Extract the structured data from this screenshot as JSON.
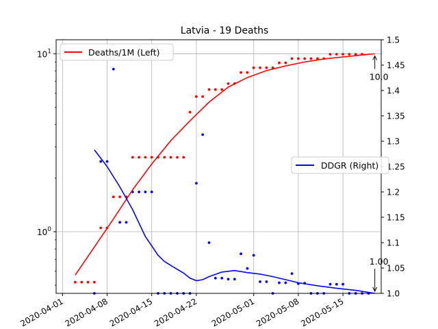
{
  "chart_data": {
    "type": "line",
    "title": "Latvia - 19 Deaths",
    "xlabel": "",
    "ylabel_left": "",
    "ylabel_right": "",
    "x_tick_labels": [
      "2020-04-01",
      "2020-04-08",
      "2020-04-15",
      "2020-04-22",
      "2020-05-01",
      "2020-05-08",
      "2020-05-15"
    ],
    "x_tick_dates": [
      "2020-04-01",
      "2020-04-08",
      "2020-04-15",
      "2020-04-22",
      "2020-05-01",
      "2020-05-08",
      "2020-05-15"
    ],
    "x_range": [
      "2020-03-31",
      "2020-05-21"
    ],
    "left_axis": {
      "scale": "log",
      "range": [
        0.45,
        12
      ],
      "major_ticks": [
        1,
        10
      ],
      "major_tick_labels": [
        "10^0",
        "10^1"
      ]
    },
    "right_axis": {
      "scale": "linear",
      "range": [
        1.0,
        1.5
      ],
      "ticks": [
        1.0,
        1.05,
        1.1,
        1.15,
        1.2,
        1.25,
        1.3,
        1.35,
        1.4,
        1.45,
        1.5
      ],
      "tick_labels": [
        "1.0",
        "1.05",
        "1.1",
        "1.15",
        "1.2",
        "1.25",
        "1.3",
        "1.35",
        "1.4",
        "1.45",
        "1.5"
      ]
    },
    "grid": true,
    "colors": {
      "deaths": "#ff0000",
      "ddgr": "#0000ff"
    },
    "legends": [
      {
        "label": "Deaths/1M (Left)",
        "placement": "upper-left"
      },
      {
        "label": "DDGR (Right)",
        "placement": "center-right"
      }
    ],
    "annotations": [
      {
        "text": "10.0",
        "date": "2020-05-20",
        "value": 10.0,
        "axis": "left"
      },
      {
        "text": "1.00",
        "date": "2020-05-20",
        "value": 1.0,
        "axis": "right"
      }
    ],
    "series": [
      {
        "name": "Deaths/1M (Left)",
        "axis": "left",
        "kind": "line",
        "x": [
          "2020-04-03",
          "2020-04-06",
          "2020-04-09",
          "2020-04-12",
          "2020-04-15",
          "2020-04-18",
          "2020-04-21",
          "2020-04-24",
          "2020-04-27",
          "2020-04-30",
          "2020-05-03",
          "2020-05-06",
          "2020-05-09",
          "2020-05-12",
          "2020-05-15",
          "2020-05-18",
          "2020-05-20"
        ],
        "y": [
          0.57,
          0.82,
          1.18,
          1.72,
          2.4,
          3.25,
          4.2,
          5.35,
          6.5,
          7.35,
          8.05,
          8.55,
          9.0,
          9.35,
          9.6,
          9.85,
          10.0
        ]
      },
      {
        "name": "Deaths/1M (Left)",
        "axis": "left",
        "kind": "scatter",
        "x": [
          "2020-04-03",
          "2020-04-04",
          "2020-04-05",
          "2020-04-06",
          "2020-04-07",
          "2020-04-08",
          "2020-04-09",
          "2020-04-10",
          "2020-04-11",
          "2020-04-12",
          "2020-04-13",
          "2020-04-14",
          "2020-04-15",
          "2020-04-16",
          "2020-04-17",
          "2020-04-18",
          "2020-04-19",
          "2020-04-20",
          "2020-04-21",
          "2020-04-22",
          "2020-04-23",
          "2020-04-24",
          "2020-04-25",
          "2020-04-26",
          "2020-04-27",
          "2020-04-28",
          "2020-04-29",
          "2020-04-30",
          "2020-05-01",
          "2020-05-02",
          "2020-05-03",
          "2020-05-04",
          "2020-05-05",
          "2020-05-06",
          "2020-05-07",
          "2020-05-08",
          "2020-05-09",
          "2020-05-10",
          "2020-05-11",
          "2020-05-12",
          "2020-05-13",
          "2020-05-14",
          "2020-05-15",
          "2020-05-16",
          "2020-05-17",
          "2020-05-18"
        ],
        "y": [
          0.52,
          0.52,
          0.52,
          0.52,
          1.05,
          1.05,
          1.57,
          1.57,
          1.57,
          2.62,
          2.62,
          2.62,
          2.62,
          2.62,
          2.62,
          2.62,
          2.62,
          2.62,
          4.7,
          5.75,
          5.75,
          6.3,
          6.3,
          6.3,
          6.8,
          6.8,
          7.85,
          7.85,
          8.35,
          8.35,
          8.35,
          8.35,
          8.9,
          8.9,
          9.4,
          9.4,
          9.4,
          9.4,
          9.4,
          9.4,
          9.95,
          9.95,
          9.95,
          9.95,
          9.95,
          9.95
        ]
      },
      {
        "name": "DDGR (Right)",
        "axis": "right",
        "kind": "line",
        "x": [
          "2020-04-06",
          "2020-04-08",
          "2020-04-10",
          "2020-04-12",
          "2020-04-14",
          "2020-04-16",
          "2020-04-17",
          "2020-04-18",
          "2020-04-20",
          "2020-04-21",
          "2020-04-22",
          "2020-04-23",
          "2020-04-24",
          "2020-04-26",
          "2020-04-28",
          "2020-04-30",
          "2020-05-02",
          "2020-05-04",
          "2020-05-06",
          "2020-05-08",
          "2020-05-11",
          "2020-05-14",
          "2020-05-17",
          "2020-05-20"
        ],
        "y": [
          1.283,
          1.25,
          1.21,
          1.165,
          1.112,
          1.075,
          1.063,
          1.055,
          1.04,
          1.03,
          1.025,
          1.027,
          1.033,
          1.042,
          1.045,
          1.041,
          1.038,
          1.033,
          1.027,
          1.021,
          1.015,
          1.01,
          1.006,
          1.0
        ]
      },
      {
        "name": "DDGR (Right)",
        "axis": "right",
        "kind": "scatter",
        "x": [
          "2020-04-06",
          "2020-04-07",
          "2020-04-08",
          "2020-04-09",
          "2020-04-10",
          "2020-04-11",
          "2020-04-12",
          "2020-04-13",
          "2020-04-14",
          "2020-04-15",
          "2020-04-16",
          "2020-04-17",
          "2020-04-18",
          "2020-04-19",
          "2020-04-20",
          "2020-04-21",
          "2020-04-22",
          "2020-04-23",
          "2020-04-24",
          "2020-04-25",
          "2020-04-26",
          "2020-04-27",
          "2020-04-28",
          "2020-04-29",
          "2020-04-30",
          "2020-05-01",
          "2020-05-02",
          "2020-05-03",
          "2020-05-04",
          "2020-05-05",
          "2020-05-06",
          "2020-05-07",
          "2020-05-08",
          "2020-05-09",
          "2020-05-10",
          "2020-05-11",
          "2020-05-12",
          "2020-05-13",
          "2020-05-14",
          "2020-05-15",
          "2020-05-16",
          "2020-05-17",
          "2020-05-18",
          "2020-05-19"
        ],
        "y": [
          1.0,
          1.26,
          1.26,
          1.442,
          1.14,
          1.14,
          1.2,
          1.2,
          1.2,
          1.2,
          1.0,
          1.0,
          1.0,
          1.0,
          1.0,
          1.0,
          1.217,
          1.313,
          1.1,
          1.03,
          1.03,
          1.028,
          1.028,
          1.078,
          1.049,
          1.075,
          1.023,
          1.023,
          1.0,
          1.021,
          1.021,
          1.039,
          1.019,
          1.02,
          1.0,
          1.0,
          1.0,
          1.018,
          1.018,
          1.018,
          1.0,
          1.0,
          1.0,
          1.0
        ]
      }
    ]
  }
}
